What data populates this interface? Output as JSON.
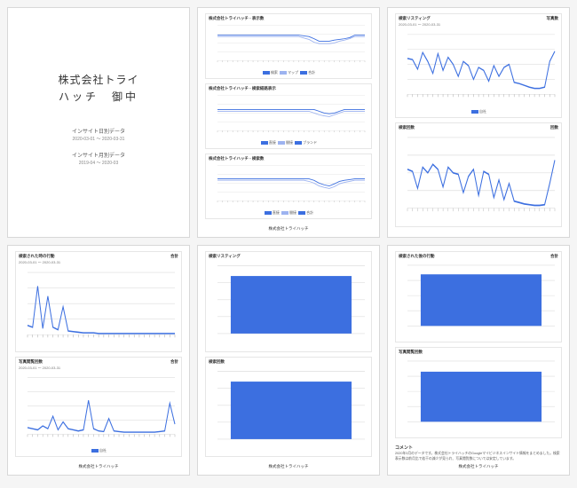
{
  "colors": {
    "primary": "#3c6fe0",
    "secondary": "#7a97e8",
    "grid": "#dddddd",
    "axis": "#888888",
    "text": "#333333",
    "bg": "#ffffff"
  },
  "font": {
    "base_size": 5,
    "title_size": 12
  },
  "page_footer": "株式会社トライハッチ",
  "cover": {
    "title_line1": "株式会社トライ",
    "title_line2": "ハッチ　御中",
    "items": [
      {
        "label": "インサイト日別データ",
        "range": "2020-03-01 〜 2020-03-31"
      },
      {
        "label": "インサイト月別データ",
        "range": "2019-04 〜 2020-03"
      }
    ]
  },
  "pages": [
    {
      "show_footer": true,
      "panels": [
        {
          "title": "株式会社トライハッチ - 表示数",
          "date": "",
          "chart": {
            "type": "line",
            "ylim": [
              0,
              100
            ],
            "xticks": 30,
            "series": [
              {
                "color": "#3c6fe0",
                "values": [
                  72,
                  72,
                  72,
                  72,
                  72,
                  72,
                  72,
                  72,
                  72,
                  72,
                  72,
                  72,
                  72,
                  72,
                  72,
                  72,
                  72,
                  70,
                  68,
                  62,
                  55,
                  55,
                  55,
                  58,
                  60,
                  62,
                  65,
                  72,
                  72,
                  72
                ]
              },
              {
                "color": "#9db3f0",
                "values": [
                  68,
                  68,
                  68,
                  68,
                  68,
                  68,
                  68,
                  68,
                  68,
                  68,
                  68,
                  68,
                  68,
                  68,
                  68,
                  68,
                  68,
                  64,
                  60,
                  52,
                  48,
                  48,
                  48,
                  50,
                  55,
                  58,
                  62,
                  68,
                  68,
                  68
                ]
              }
            ]
          },
          "legend": [
            {
              "color": "#3c6fe0",
              "label": "検索"
            },
            {
              "color": "#9db3f0",
              "label": "マップ"
            },
            {
              "color": "#3c6fe0",
              "label": "合計"
            }
          ]
        },
        {
          "title": "株式会社トライハッチ - 検索経路表示",
          "date": "",
          "chart": {
            "type": "line",
            "ylim": [
              0,
              100
            ],
            "xticks": 30,
            "series": [
              {
                "color": "#3c6fe0",
                "values": [
                  60,
                  60,
                  60,
                  60,
                  60,
                  60,
                  60,
                  60,
                  60,
                  60,
                  60,
                  60,
                  60,
                  60,
                  60,
                  60,
                  60,
                  60,
                  60,
                  60,
                  55,
                  50,
                  48,
                  50,
                  55,
                  60,
                  60,
                  60,
                  60,
                  60
                ]
              },
              {
                "color": "#9db3f0",
                "values": [
                  55,
                  55,
                  55,
                  55,
                  55,
                  55,
                  55,
                  55,
                  55,
                  55,
                  55,
                  55,
                  55,
                  55,
                  55,
                  55,
                  55,
                  55,
                  55,
                  50,
                  45,
                  42,
                  40,
                  45,
                  50,
                  55,
                  55,
                  55,
                  55,
                  55
                ]
              }
            ]
          },
          "legend": [
            {
              "color": "#3c6fe0",
              "label": "直接"
            },
            {
              "color": "#9db3f0",
              "label": "間接"
            },
            {
              "color": "#3c6fe0",
              "label": "ブランド"
            }
          ]
        },
        {
          "title": "株式会社トライハッチ - 検索数",
          "date": "",
          "chart": {
            "type": "line",
            "ylim": [
              0,
              100
            ],
            "xticks": 30,
            "series": [
              {
                "color": "#3c6fe0",
                "values": [
                  62,
                  62,
                  62,
                  62,
                  62,
                  62,
                  62,
                  62,
                  62,
                  62,
                  62,
                  62,
                  62,
                  62,
                  62,
                  62,
                  62,
                  62,
                  62,
                  58,
                  50,
                  45,
                  42,
                  48,
                  55,
                  58,
                  60,
                  62,
                  62,
                  62
                ]
              },
              {
                "color": "#9db3f0",
                "values": [
                  58,
                  58,
                  58,
                  58,
                  58,
                  58,
                  58,
                  58,
                  58,
                  58,
                  58,
                  58,
                  58,
                  58,
                  58,
                  58,
                  58,
                  58,
                  55,
                  50,
                  42,
                  38,
                  35,
                  40,
                  48,
                  52,
                  55,
                  58,
                  58,
                  58
                ]
              }
            ]
          },
          "legend": [
            {
              "color": "#3c6fe0",
              "label": "直接"
            },
            {
              "color": "#9db3f0",
              "label": "間接"
            },
            {
              "color": "#3c6fe0",
              "label": "合計"
            }
          ]
        }
      ]
    },
    {
      "show_footer": false,
      "panels": [
        {
          "title": "検索リスティング",
          "right": "写真数",
          "date": "2020-03-01 〜 2020-03-31",
          "chart": {
            "type": "line",
            "ylim": [
              0,
              100
            ],
            "xticks": 30,
            "series": [
              {
                "color": "#3c6fe0",
                "values": [
                  60,
                  58,
                  42,
                  70,
                  55,
                  35,
                  68,
                  40,
                  62,
                  50,
                  30,
                  55,
                  48,
                  25,
                  45,
                  40,
                  22,
                  48,
                  30,
                  45,
                  50,
                  20,
                  18,
                  15,
                  12,
                  10,
                  10,
                  12,
                  55,
                  72
                ]
              }
            ]
          },
          "legend": [
            {
              "color": "#3c6fe0",
              "label": "自社"
            }
          ]
        },
        {
          "title": "検索回数",
          "right": "回数",
          "date": "",
          "chart": {
            "type": "line",
            "ylim": [
              0,
              100
            ],
            "xticks": 30,
            "series": [
              {
                "color": "#3c6fe0",
                "values": [
                  55,
                  52,
                  28,
                  58,
                  50,
                  62,
                  55,
                  30,
                  58,
                  50,
                  48,
                  22,
                  45,
                  55,
                  18,
                  52,
                  48,
                  15,
                  40,
                  12,
                  35,
                  10,
                  8,
                  6,
                  5,
                  4,
                  4,
                  5,
                  35,
                  68
                ]
              }
            ]
          },
          "legend": []
        }
      ]
    },
    {
      "show_footer": true,
      "panels": [
        {
          "title": "検索された時の行動",
          "right": "合計",
          "date": "2020-03-01 〜 2020-03-31",
          "chart": {
            "type": "line",
            "ylim": [
              0,
              100
            ],
            "xticks": 30,
            "series": [
              {
                "color": "#3c6fe0",
                "values": [
                  15,
                  12,
                  78,
                  10,
                  62,
                  12,
                  8,
                  45,
                  6,
                  5,
                  4,
                  3,
                  3,
                  3,
                  2,
                  2,
                  2,
                  2,
                  2,
                  2,
                  2,
                  2,
                  2,
                  2,
                  2,
                  2,
                  2,
                  2,
                  2,
                  2
                ]
              }
            ]
          },
          "legend": []
        },
        {
          "title": "写真閲覧回数",
          "right": "合計",
          "date": "2020-03-01 〜 2020-03-31",
          "chart": {
            "type": "line",
            "ylim": [
              0,
              100
            ],
            "xticks": 30,
            "series": [
              {
                "color": "#3c6fe0",
                "values": [
                  12,
                  10,
                  8,
                  15,
                  10,
                  32,
                  8,
                  22,
                  10,
                  8,
                  6,
                  8,
                  60,
                  10,
                  6,
                  5,
                  28,
                  6,
                  5,
                  4,
                  4,
                  4,
                  4,
                  4,
                  4,
                  4,
                  5,
                  6,
                  55,
                  18
                ]
              }
            ]
          },
          "legend": [
            {
              "color": "#3c6fe0",
              "label": "自社"
            }
          ]
        }
      ]
    },
    {
      "show_footer": true,
      "panels": [
        {
          "title": "検索リスティング",
          "right": "",
          "date": "",
          "chart": {
            "type": "bar",
            "ylim": [
              0,
              2000
            ],
            "xticks": 1,
            "bar_width": 0.82,
            "series": [
              {
                "color": "#3c6fe0",
                "values": [
                  1700
                ]
              }
            ]
          },
          "legend": []
        },
        {
          "title": "検索回数",
          "right": "",
          "date": "",
          "chart": {
            "type": "bar",
            "ylim": [
              0,
              2000
            ],
            "xticks": 1,
            "bar_width": 0.82,
            "series": [
              {
                "color": "#3c6fe0",
                "values": [
                  1700
                ]
              }
            ]
          },
          "legend": []
        }
      ]
    },
    {
      "show_footer": true,
      "panels": [
        {
          "title": "検索された後の行動",
          "right": "合計",
          "date": "",
          "chart": {
            "type": "bar",
            "ylim": [
              0,
              100
            ],
            "xticks": 1,
            "bar_width": 0.82,
            "series": [
              {
                "color": "#3c6fe0",
                "values": [
                  85
                ]
              }
            ]
          },
          "legend": []
        },
        {
          "title": "写真閲覧回数",
          "right": "",
          "date": "",
          "chart": {
            "type": "bar",
            "ylim": [
              0,
              2000
            ],
            "xticks": 1,
            "bar_width": 0.82,
            "series": [
              {
                "color": "#3c6fe0",
                "values": [
                  1650
                ]
              }
            ]
          },
          "legend": []
        }
      ],
      "comment": {
        "title": "コメント",
        "body": "2020年3月のデータです。株式会社トライハッチのGoogleマイビジネスインサイト情報をまとめました。検索表示数は前月比で若干の減少が見られ、写真閲覧数については安定しています。"
      }
    }
  ]
}
